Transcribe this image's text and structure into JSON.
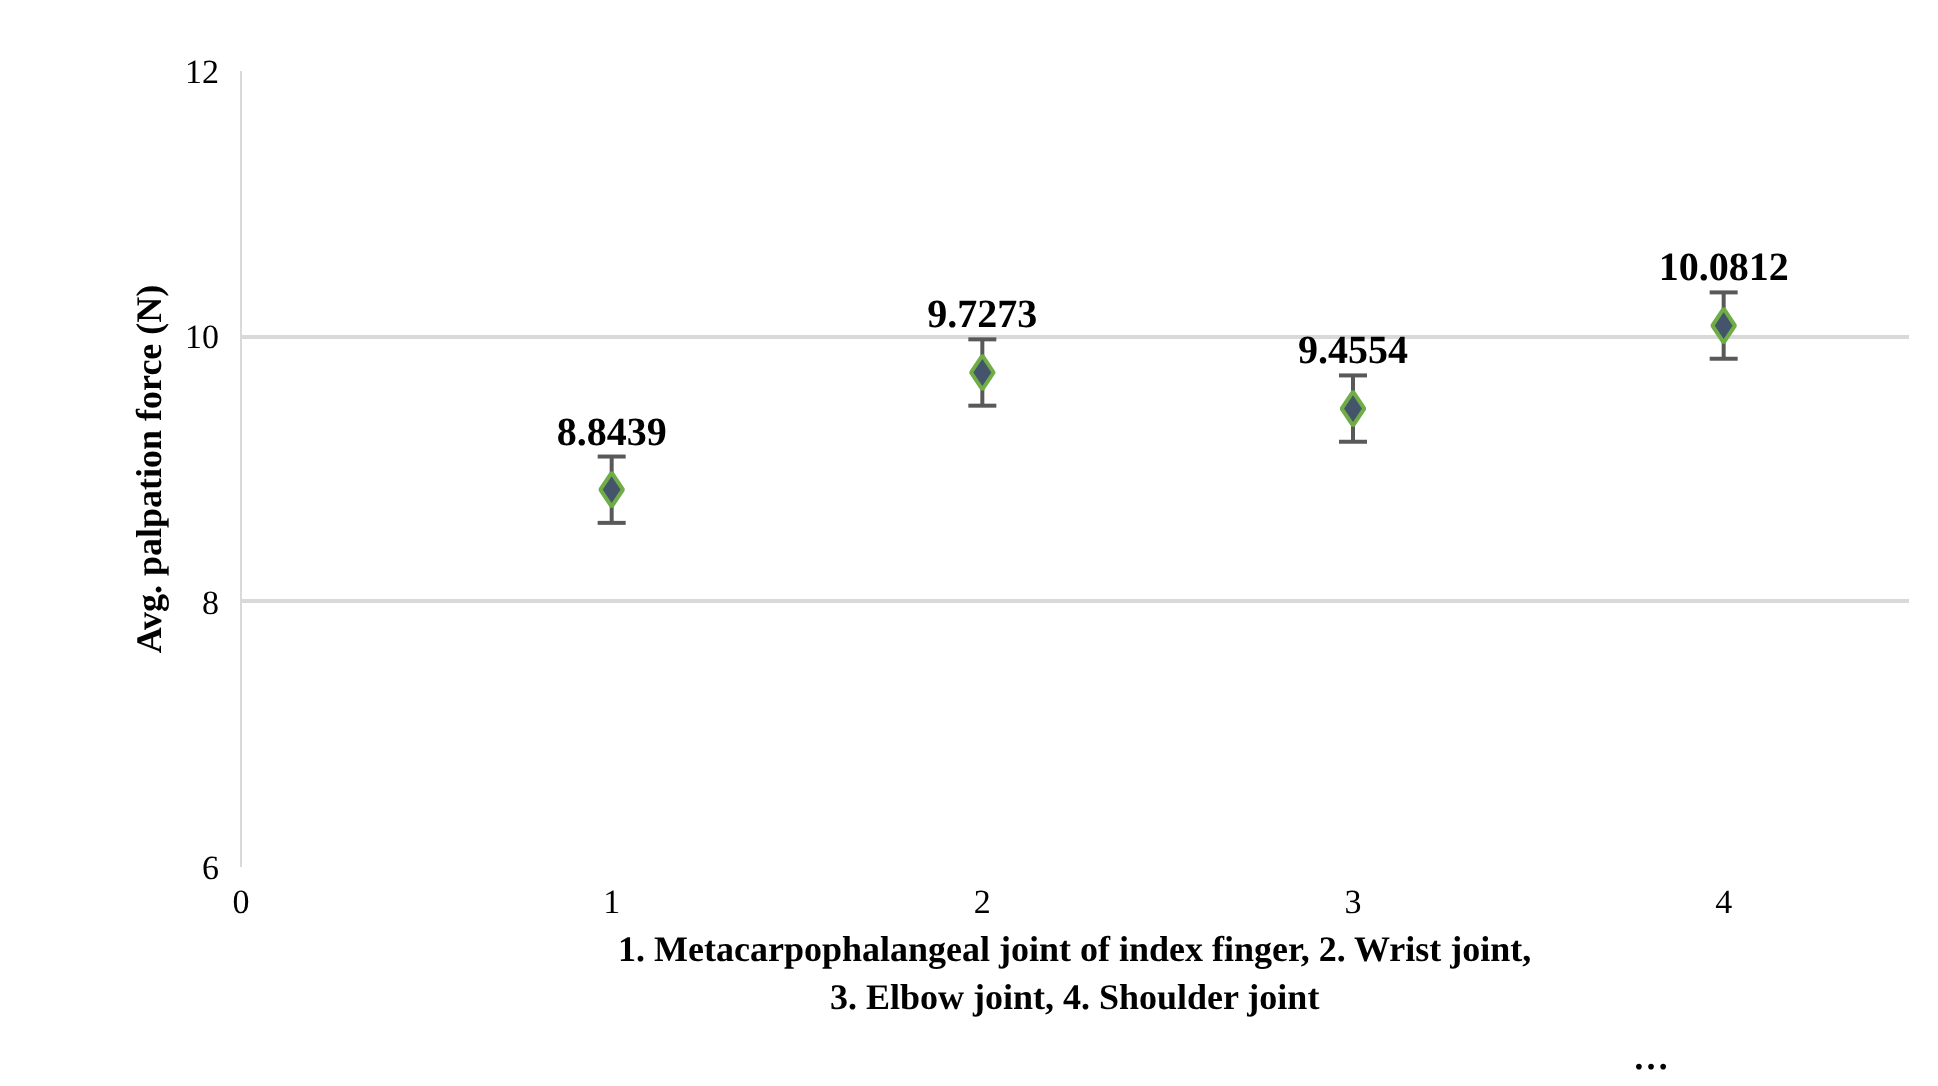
{
  "chart_data": {
    "type": "scatter",
    "x": [
      1,
      2,
      3,
      4
    ],
    "values": [
      8.8439,
      9.7273,
      9.4554,
      10.0812
    ],
    "errors": [
      0.25,
      0.25,
      0.25,
      0.25
    ],
    "color": "#44546a",
    "marker": "diamond",
    "data_labels": true,
    "xlabel": "1. Metacarpophalangeal joint of index finger, 2. Wrist joint, 3. Elbow joint, 4. Shoulder joint",
    "ylabel": "Avg. palpation force (N)",
    "xlim": [
      0,
      4.5
    ],
    "ylim": [
      6,
      12
    ],
    "xticks": [
      0,
      1,
      2,
      3,
      4
    ],
    "yticks": [
      6,
      8,
      10,
      12
    ],
    "grid": "y",
    "annotations": [
      "…"
    ]
  }
}
